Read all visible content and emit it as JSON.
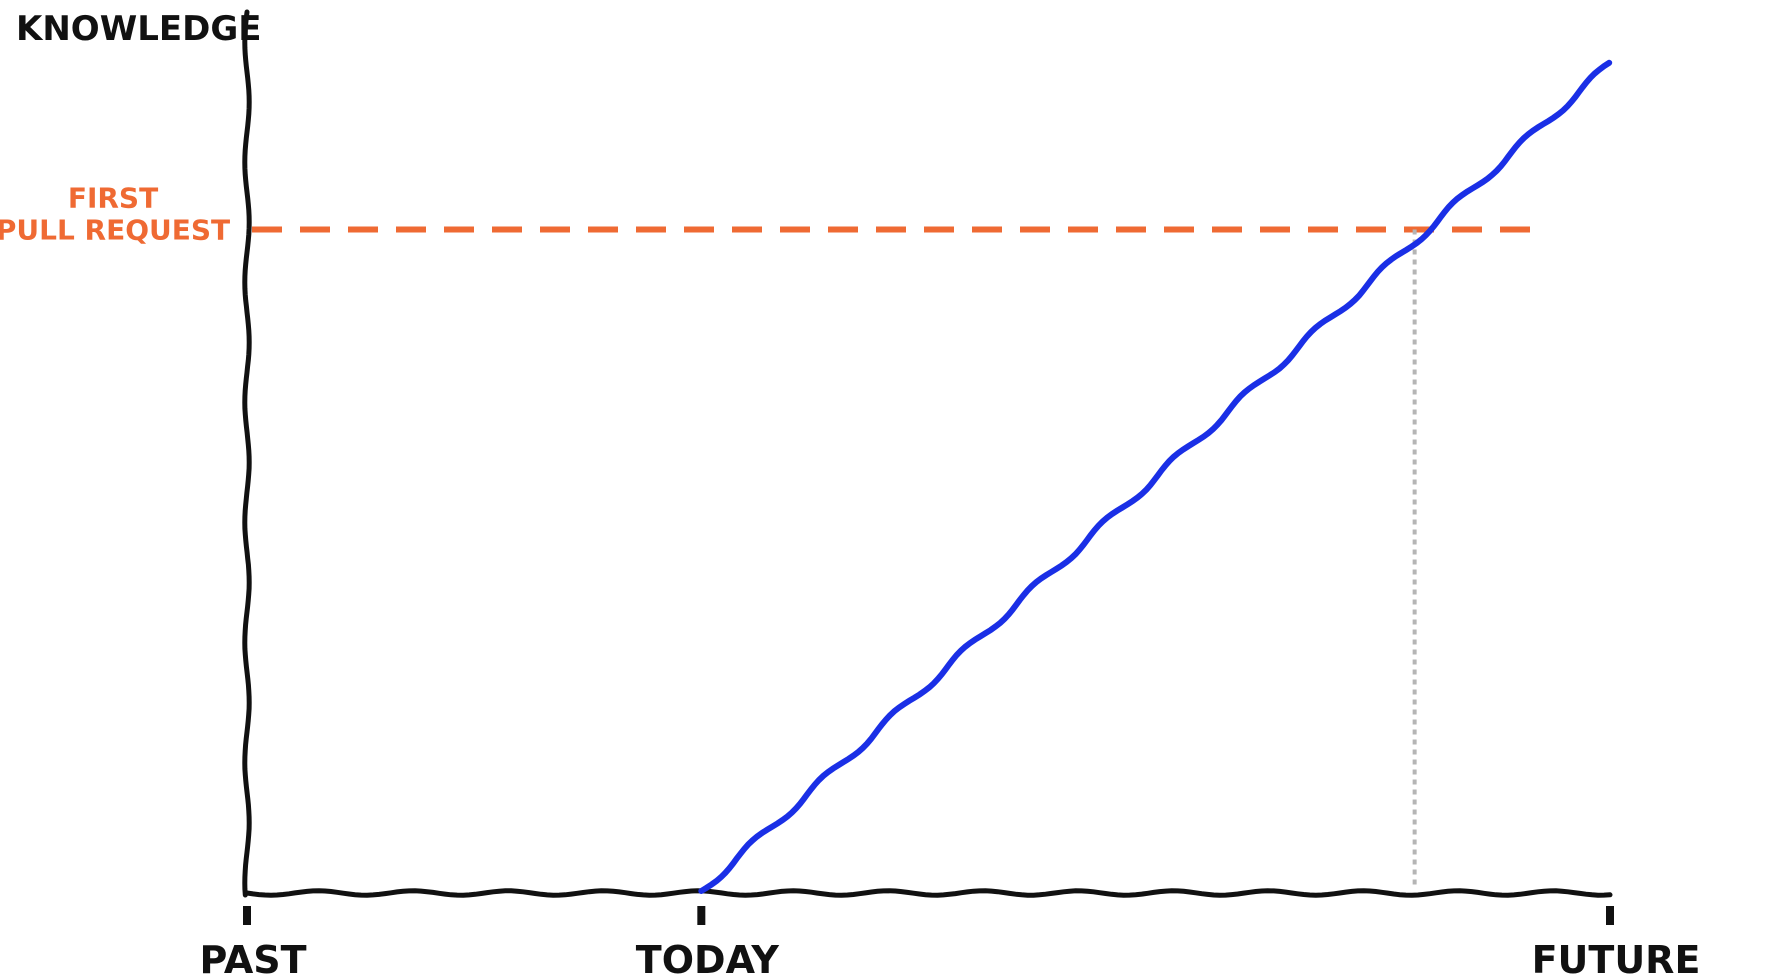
{
  "chart_data": {
    "type": "line",
    "title": "",
    "ylabel": "KNOWLEDGE",
    "xlabel": "",
    "x_ticks": [
      {
        "label": "PAST",
        "x": 0
      },
      {
        "label": "TODAY",
        "x": 1
      },
      {
        "label": "FUTURE",
        "x": 3
      }
    ],
    "xlim": [
      0,
      3
    ],
    "ylim": [
      0,
      1
    ],
    "series": [
      {
        "name": "",
        "color": "#1a2fe6",
        "x": [
          1,
          3
        ],
        "y": [
          0,
          0.95
        ]
      }
    ],
    "threshold": {
      "label_lines": [
        "FIRST",
        "PULL REQUEST"
      ],
      "y": 0.76,
      "color": "#ef6a33",
      "style": "dashed"
    },
    "marker_line": {
      "x": 2.57,
      "color": "#b5b5b5",
      "style": "dotted"
    },
    "grid": false,
    "legend": "none",
    "style": "xkcd"
  }
}
